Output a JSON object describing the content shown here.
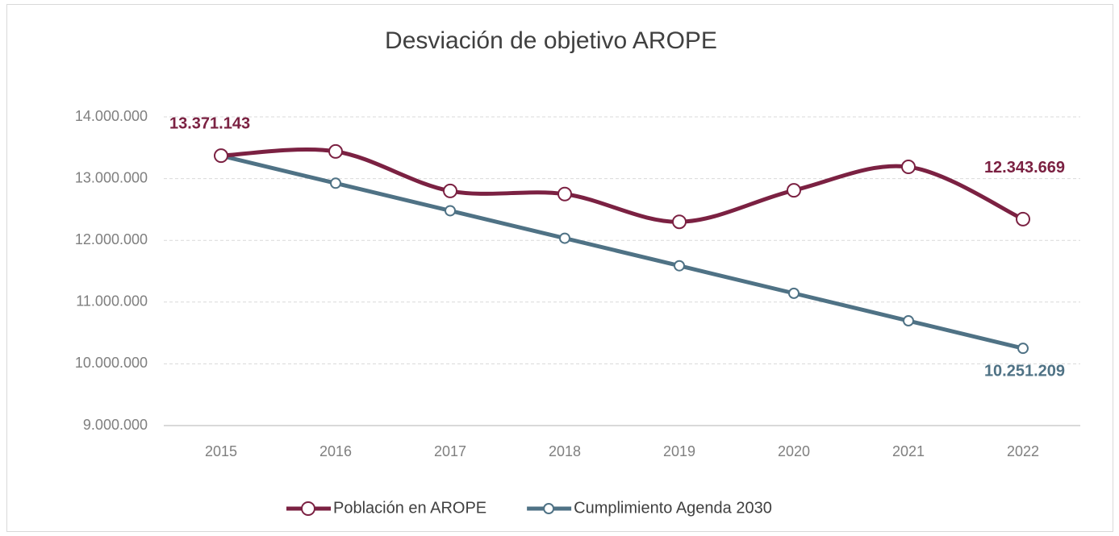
{
  "chart_data": {
    "type": "line",
    "title": "Desviación de objetivo AROPE",
    "categories": [
      "2015",
      "2016",
      "2017",
      "2018",
      "2019",
      "2020",
      "2021",
      "2022"
    ],
    "series": [
      {
        "name": "Población en AROPE",
        "color": "#7b2142",
        "smooth": true,
        "values": [
          13371143,
          13440000,
          12800000,
          12750000,
          12300000,
          12810000,
          13190000,
          12343669
        ],
        "value_labels": [
          "13.371.143",
          null,
          null,
          null,
          null,
          null,
          null,
          "12.343.669"
        ]
      },
      {
        "name": "Cumplimiento Agenda 2030",
        "color": "#4f7285",
        "smooth": false,
        "values": [
          13371143,
          12925437,
          12479732,
          12034026,
          11588320,
          11142615,
          10696909,
          10251209
        ],
        "value_labels": [
          null,
          null,
          null,
          null,
          null,
          null,
          null,
          "10.251.209"
        ]
      }
    ],
    "ylim": [
      9000000,
      14000000
    ],
    "yticks": [
      {
        "value": 9000000,
        "label": "9.000.000"
      },
      {
        "value": 10000000,
        "label": "10.000.000"
      },
      {
        "value": 11000000,
        "label": "11.000.000"
      },
      {
        "value": 12000000,
        "label": "12.000.000"
      },
      {
        "value": 13000000,
        "label": "13.000.000"
      },
      {
        "value": 14000000,
        "label": "14.000.000"
      }
    ],
    "grid": true,
    "legend": "bottom"
  }
}
